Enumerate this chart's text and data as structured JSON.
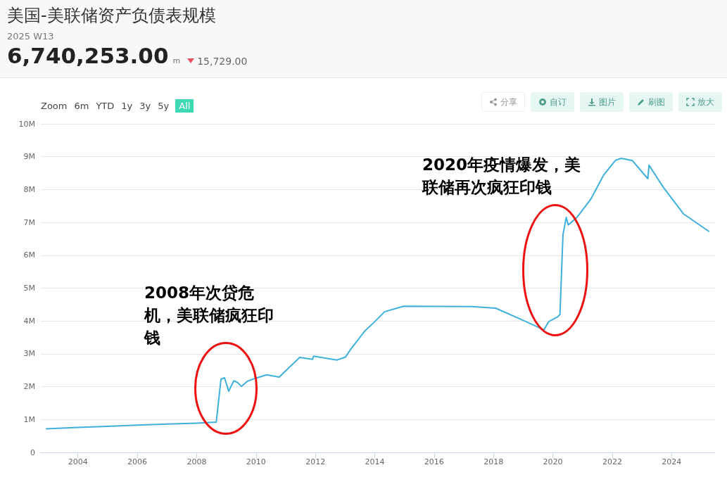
{
  "chart_data": {
    "type": "line",
    "title": "美国-美联储资产负债表规模",
    "subtitle": "2025 W13",
    "annotations": [
      "6,740,253.00",
      "m",
      "15,729.00",
      "Zoom",
      "6m",
      "YTD",
      "1y",
      "3y",
      "5y",
      "All",
      "分享",
      "自订",
      "图片",
      "刷图",
      "放大",
      "2008年次贷危机，美联储疯狂印钱",
      "2020年疫情爆发，美联储再次疯狂印钱"
    ],
    "series": [
      {
        "color": "#3eb0dc",
        "x": [
          2002.94,
          2004.0,
          2005.0,
          2006.0,
          2007.0,
          2008.0,
          2008.66,
          2008.82,
          2008.94,
          2009.08,
          2009.25,
          2009.37,
          2009.51,
          2009.7,
          2009.96,
          2010.36,
          2010.78,
          2011.47,
          2011.9,
          2011.94,
          2012.72,
          2013.01,
          2013.2,
          2013.67,
          2014.0,
          2014.33,
          2014.97,
          2017.26,
          2018.07,
          2018.87,
          2019.7,
          2019.86,
          2020.17,
          2020.24,
          2020.34,
          2020.45,
          2020.52,
          2020.81,
          2021.28,
          2021.71,
          2022.11,
          2022.3,
          2022.68,
          2023.2,
          2023.24,
          2023.72,
          2024.4,
          2024.85,
          2025.25
        ],
        "values": [
          720000,
          760000,
          790000,
          830000,
          860000,
          890000,
          920000,
          2230000,
          2270000,
          1860000,
          2180000,
          2130000,
          2010000,
          2160000,
          2250000,
          2360000,
          2290000,
          2890000,
          2830000,
          2930000,
          2810000,
          2900000,
          3150000,
          3700000,
          3980000,
          4280000,
          4450000,
          4440000,
          4390000,
          4070000,
          3730000,
          3980000,
          4130000,
          4200000,
          6620000,
          7150000,
          6920000,
          7150000,
          7710000,
          8440000,
          8890000,
          8950000,
          8880000,
          8330000,
          8740000,
          8070000,
          7260000,
          6980000,
          6730000
        ]
      }
    ],
    "xlim": [
      2002.75,
      2025.44
    ],
    "xticks": [
      2004,
      2006,
      2008,
      2010,
      2012,
      2014,
      2016,
      2018,
      2020,
      2022,
      2024
    ],
    "ylim": [
      0,
      10000000
    ],
    "yticks": [
      0,
      {
        "value": 1000000,
        "label": "1M"
      },
      {
        "value": 2000000,
        "label": "2M"
      },
      {
        "value": 3000000,
        "label": "3M"
      },
      {
        "value": 4000000,
        "label": "4M"
      },
      {
        "value": 5000000,
        "label": "5M"
      },
      {
        "value": 6000000,
        "label": "6M"
      },
      {
        "value": 7000000,
        "label": "7M"
      },
      {
        "value": 8000000,
        "label": "8M"
      },
      {
        "value": 9000000,
        "label": "9M"
      },
      {
        "value": 10000000,
        "label": "10M"
      }
    ],
    "grid": "y",
    "marker": "none",
    "line_style": "solid"
  }
}
